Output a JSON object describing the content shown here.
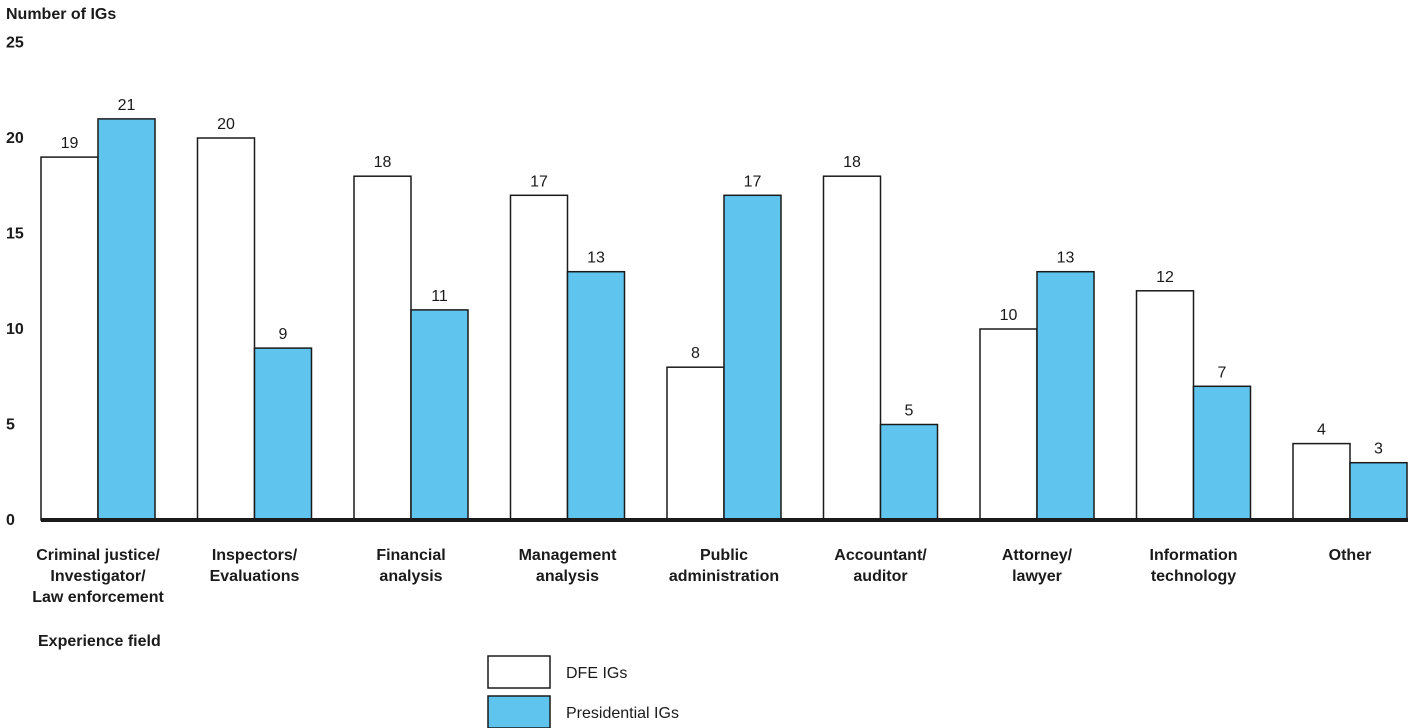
{
  "chart_data": {
    "type": "bar",
    "ylabel": "Number of IGs",
    "xlabel": "Experience field",
    "ylim": [
      0,
      25
    ],
    "yticks": [
      "0",
      "5",
      "10",
      "15",
      "20",
      "25"
    ],
    "grid": false,
    "legend_position": "bottom-center",
    "categories": [
      [
        "Criminal justice/",
        "Investigator/",
        "Law enforcement"
      ],
      [
        "Inspectors/",
        "Evaluations"
      ],
      [
        "Financial",
        "analysis"
      ],
      [
        "Management",
        "analysis"
      ],
      [
        "Public",
        "administration"
      ],
      [
        "Accountant/",
        "auditor"
      ],
      [
        "Attorney/",
        "lawyer"
      ],
      [
        "Information",
        "technology"
      ],
      [
        "Other"
      ]
    ],
    "series": [
      {
        "name": "DFE IGs",
        "color": "#ffffff",
        "values": [
          19,
          20,
          18,
          17,
          8,
          18,
          10,
          12,
          4
        ]
      },
      {
        "name": "Presidential IGs",
        "color": "#5fc5ef",
        "values": [
          21,
          9,
          11,
          13,
          17,
          5,
          13,
          7,
          3
        ]
      }
    ]
  }
}
